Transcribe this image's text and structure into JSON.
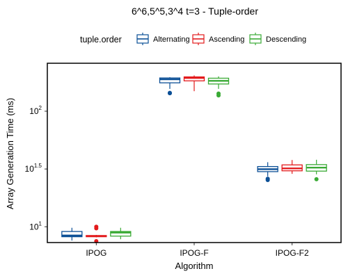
{
  "chart_data": {
    "type": "boxplot",
    "title": "6^6,5^5,3^4 t=3 - Tuple-order",
    "xlabel": "Algorithm",
    "ylabel": "Array Generation Time (ms)",
    "y_scale": "log10",
    "ylim": [
      7.3,
      260
    ],
    "y_ticks": [
      {
        "value": 10,
        "base": "10",
        "exp": "1"
      },
      {
        "value": 31.62,
        "base": "10",
        "exp": "1.5"
      },
      {
        "value": 100,
        "base": "10",
        "exp": "2"
      }
    ],
    "categories": [
      "IPOG",
      "IPOG-F",
      "IPOG-F2"
    ],
    "legend": {
      "title": "tuple.order",
      "placement": "top",
      "entries": [
        "Alternating",
        "Ascending",
        "Descending"
      ]
    },
    "series": [
      {
        "name": "Alternating",
        "color": "#0b4f96",
        "boxes": [
          {
            "category": "IPOG",
            "whislo": 7.6,
            "q1": 8.2,
            "med": 8.4,
            "q3": 9.1,
            "whishi": 9.8,
            "outliers": []
          },
          {
            "category": "IPOG-F",
            "whislo": 156,
            "q1": 176,
            "med": 189,
            "q3": 194,
            "whishi": 197,
            "outliers": [
              143,
              144
            ]
          },
          {
            "category": "IPOG-F2",
            "whislo": 27.3,
            "q1": 30.0,
            "med": 31.5,
            "q3": 33.2,
            "whishi": 36.2,
            "outliers": [
              25.4,
              26.0
            ]
          }
        ]
      },
      {
        "name": "Ascending",
        "color": "#e31a1c",
        "boxes": [
          {
            "category": "IPOG",
            "whislo": 8.1,
            "q1": 8.2,
            "med": 8.3,
            "q3": 8.4,
            "whishi": 8.5,
            "outliers": [
              7.5,
              9.7,
              10.0
            ]
          },
          {
            "category": "IPOG-F",
            "whislo": 149,
            "q1": 183,
            "med": 194,
            "q3": 198,
            "whishi": 204,
            "outliers": []
          },
          {
            "category": "IPOG-F2",
            "whislo": 28.7,
            "q1": 30.5,
            "med": 32.0,
            "q3": 34.3,
            "whishi": 37.8,
            "outliers": []
          }
        ]
      },
      {
        "name": "Descending",
        "color": "#3aaa35",
        "boxes": [
          {
            "category": "IPOG",
            "whislo": 7.8,
            "q1": 8.3,
            "med": 8.9,
            "q3": 9.1,
            "whishi": 9.8,
            "outliers": []
          },
          {
            "category": "IPOG-F",
            "whislo": 156,
            "q1": 172,
            "med": 183,
            "q3": 193,
            "whishi": 200,
            "outliers": [
              137,
              142
            ]
          },
          {
            "category": "IPOG-F2",
            "whislo": 28.4,
            "q1": 30.3,
            "med": 32.5,
            "q3": 34.5,
            "whishi": 38.0,
            "outliers": [
              25.8
            ]
          }
        ]
      }
    ],
    "grid": false,
    "panel_border": true
  }
}
